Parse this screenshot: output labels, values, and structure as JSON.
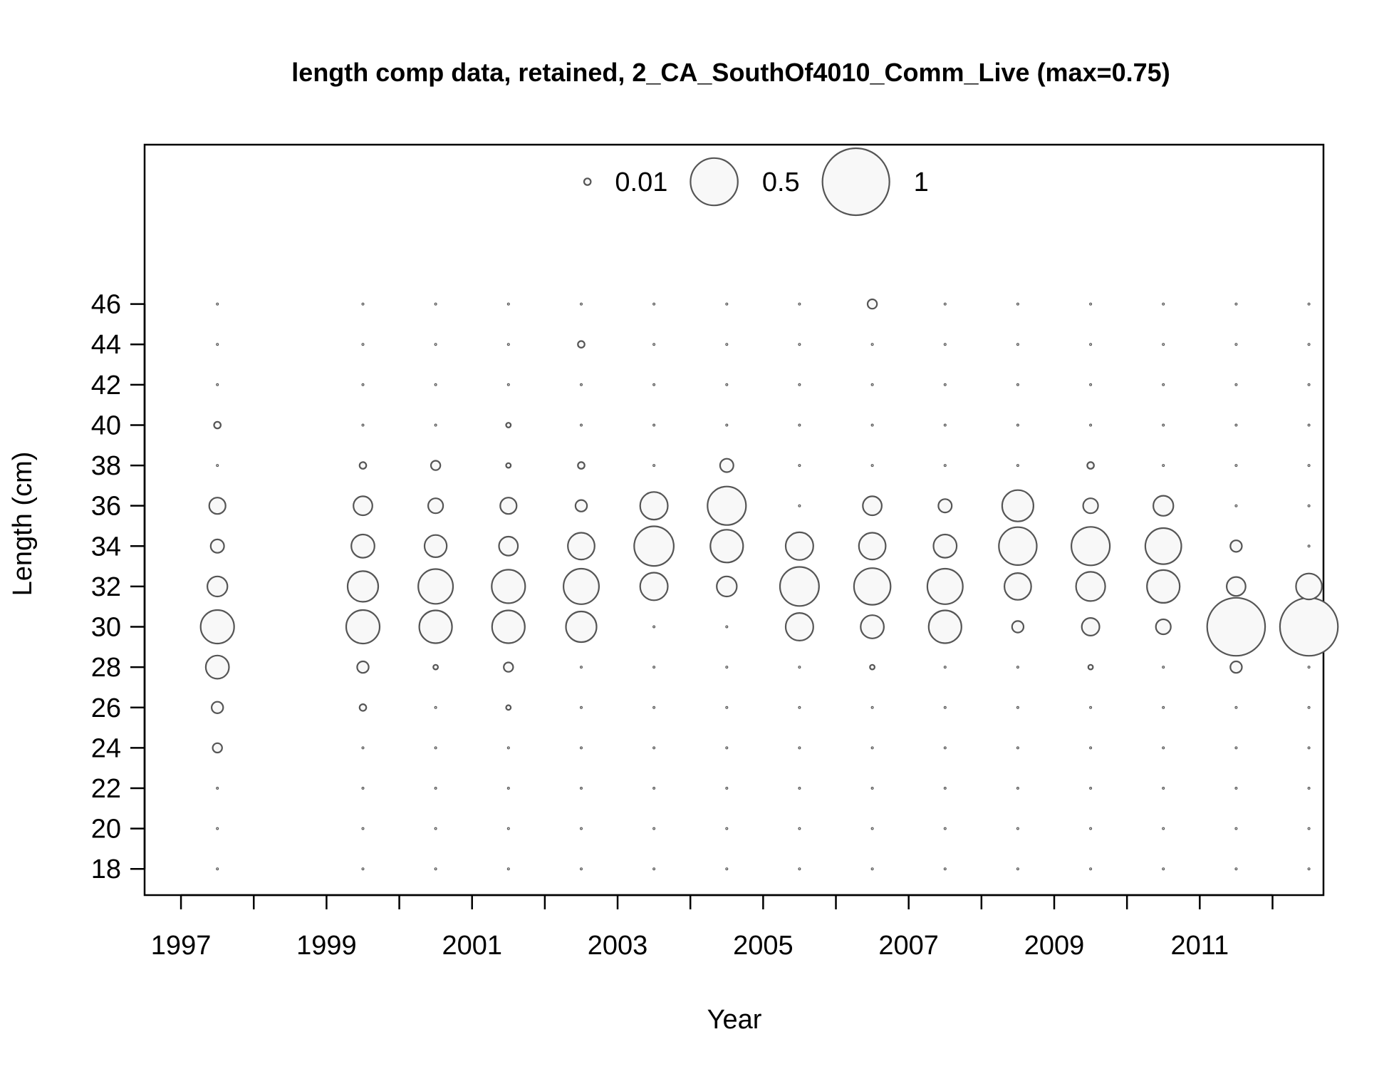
{
  "chart_data": {
    "type": "scatter",
    "subtype": "bubble",
    "title": "length comp data, retained, 2_CA_SouthOf4010_Comm_Live (max=0.75)",
    "xlabel": "Year",
    "ylabel": "Length (cm)",
    "xlim": [
      1996.5,
      2012.7
    ],
    "ylim": [
      16.7,
      53.9
    ],
    "x_ticks": [
      1997,
      1998,
      1999,
      2000,
      2001,
      2002,
      2003,
      2004,
      2005,
      2006,
      2007,
      2008,
      2009,
      2010,
      2011,
      2012
    ],
    "x_tick_labels": [
      "1997",
      "1999",
      "2001",
      "2003",
      "2005",
      "2007",
      "2009",
      "2011"
    ],
    "y_ticks": [
      18,
      20,
      22,
      24,
      26,
      28,
      30,
      32,
      34,
      36,
      38,
      40,
      42,
      44,
      46
    ],
    "grid": false,
    "legend": {
      "placement": "top-center",
      "entries": [
        {
          "label": "0.01",
          "value": 0.01
        },
        {
          "label": "0.5",
          "value": 0.5
        },
        {
          "label": "1",
          "value": 1
        }
      ]
    },
    "colors": {
      "bubble_stroke": "#555555",
      "bubble_fill": "#f8f8f8",
      "axis": "#000000"
    },
    "lengths": [
      18,
      20,
      22,
      24,
      26,
      28,
      30,
      32,
      34,
      36,
      38,
      40,
      42,
      44,
      46
    ],
    "series": [
      {
        "x": 1997.5,
        "values": [
          0,
          0,
          0,
          0.02,
          0.03,
          0.12,
          0.25,
          0.09,
          0.04,
          0.06,
          0,
          0.01,
          0,
          0,
          0
        ]
      },
      {
        "x": 1999.5,
        "values": [
          0,
          0,
          0,
          0,
          0.01,
          0.03,
          0.25,
          0.21,
          0.12,
          0.08,
          0.01,
          0,
          0,
          0,
          0
        ]
      },
      {
        "x": 2000.5,
        "values": [
          0,
          0,
          0,
          0,
          0,
          0.005,
          0.24,
          0.27,
          0.11,
          0.05,
          0.02,
          0,
          0,
          0,
          0
        ]
      },
      {
        "x": 2001.5,
        "values": [
          0,
          0,
          0,
          0,
          0.005,
          0.02,
          0.24,
          0.25,
          0.08,
          0.06,
          0.005,
          0.005,
          0,
          0,
          0
        ]
      },
      {
        "x": 2002.5,
        "values": [
          0,
          0,
          0,
          0,
          0,
          0,
          0.21,
          0.28,
          0.16,
          0.03,
          0.01,
          0,
          0,
          0.01,
          0
        ]
      },
      {
        "x": 2003.5,
        "values": [
          0,
          0,
          0,
          0,
          0,
          0,
          0,
          0.17,
          0.35,
          0.17,
          0,
          0,
          0,
          0,
          0
        ]
      },
      {
        "x": 2004.5,
        "values": [
          0,
          0,
          0,
          0,
          0,
          0,
          0,
          0.09,
          0.24,
          0.33,
          0.04,
          0,
          0,
          0,
          0
        ]
      },
      {
        "x": 2005.5,
        "values": [
          0,
          0,
          0,
          0,
          0,
          0,
          0.17,
          0.34,
          0.17,
          0,
          0,
          0,
          0,
          0,
          0
        ]
      },
      {
        "x": 2006.5,
        "values": [
          0,
          0,
          0,
          0,
          0,
          0.005,
          0.12,
          0.3,
          0.16,
          0.08,
          0,
          0,
          0,
          0,
          0.02
        ]
      },
      {
        "x": 2007.5,
        "values": [
          0,
          0,
          0,
          0,
          0,
          0,
          0.24,
          0.28,
          0.12,
          0.04,
          0,
          0,
          0,
          0,
          0
        ]
      },
      {
        "x": 2008.5,
        "values": [
          0,
          0,
          0,
          0,
          0,
          0,
          0.03,
          0.16,
          0.32,
          0.22,
          0,
          0,
          0,
          0,
          0
        ]
      },
      {
        "x": 2009.5,
        "values": [
          0,
          0,
          0,
          0,
          0,
          0.005,
          0.07,
          0.19,
          0.33,
          0.05,
          0.01,
          0,
          0,
          0,
          0
        ]
      },
      {
        "x": 2010.5,
        "values": [
          0,
          0,
          0,
          0,
          0,
          0,
          0.05,
          0.24,
          0.29,
          0.09,
          0,
          0,
          0,
          0,
          0
        ]
      },
      {
        "x": 2011.5,
        "values": [
          0,
          0,
          0,
          0,
          0,
          0.03,
          0.75,
          0.08,
          0.03,
          0,
          0,
          0,
          0,
          0,
          0
        ]
      },
      {
        "x": 2012.5,
        "values": [
          0,
          0,
          0,
          0,
          0,
          0,
          0.75,
          0.15,
          0,
          0,
          0,
          0,
          0,
          0,
          0
        ]
      }
    ]
  }
}
